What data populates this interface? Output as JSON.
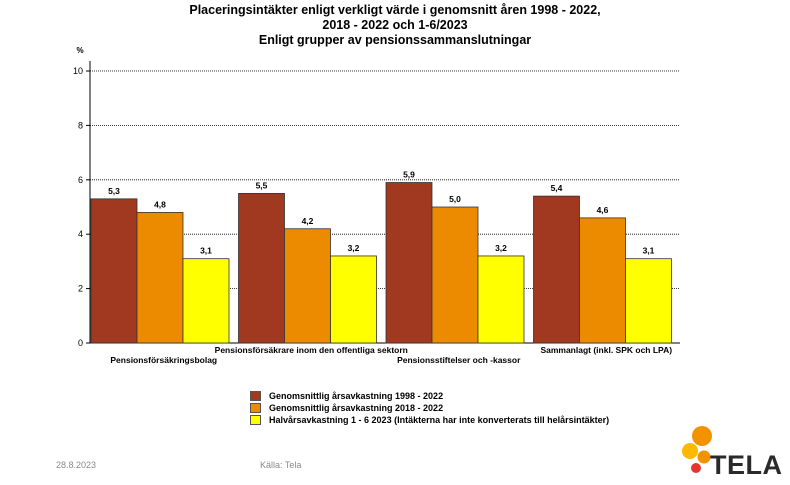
{
  "chart_data": {
    "type": "bar",
    "title_lines": [
      "Placeringsintäkter enligt verkligt värde i genomsnitt åren 1998 - 2022,",
      "2018 - 2022 och 1-6/2023",
      "Enligt grupper av pensionssammanslutningar"
    ],
    "ylabel": "%",
    "ylim": [
      0,
      10
    ],
    "yticks": [
      0,
      2,
      4,
      6,
      8,
      10
    ],
    "grid": true,
    "categories": [
      "Pensionsförsäkringsbolag",
      "Pensionsförsäkrare inom den offentliga sektorn",
      "Pensionsstiftelser och -kassor",
      "Sammanlagt (inkl. SPK och LPA)"
    ],
    "series": [
      {
        "name": "Genomsnittlig årsavkastning 1998 - 2022",
        "color": "#a0391f",
        "values": [
          5.3,
          5.5,
          5.9,
          5.4
        ],
        "labels": [
          "5,3",
          "5,5",
          "5,9",
          "5,4"
        ]
      },
      {
        "name": "Genomsnittlig årsavkastning 2018 - 2022",
        "color": "#ec8a00",
        "values": [
          4.8,
          4.2,
          5.0,
          4.6
        ],
        "labels": [
          "4,8",
          "4,2",
          "5,0",
          "4,6"
        ]
      },
      {
        "name": "Halvårsavkastning 1 - 6 2023 (Intäkterna har inte konverterats till helårsintäkter)",
        "color": "#ffff00",
        "values": [
          3.1,
          3.2,
          3.2,
          3.1
        ],
        "labels": [
          "3,1",
          "3,2",
          "3,2",
          "3,1"
        ]
      }
    ],
    "legend_position": "bottom"
  },
  "footer": {
    "date": "28.8.2023",
    "source": "Källa: Tela"
  },
  "logo": {
    "text": "TELA",
    "colors": [
      "#f39200",
      "#fbb900",
      "#e5352d"
    ]
  }
}
